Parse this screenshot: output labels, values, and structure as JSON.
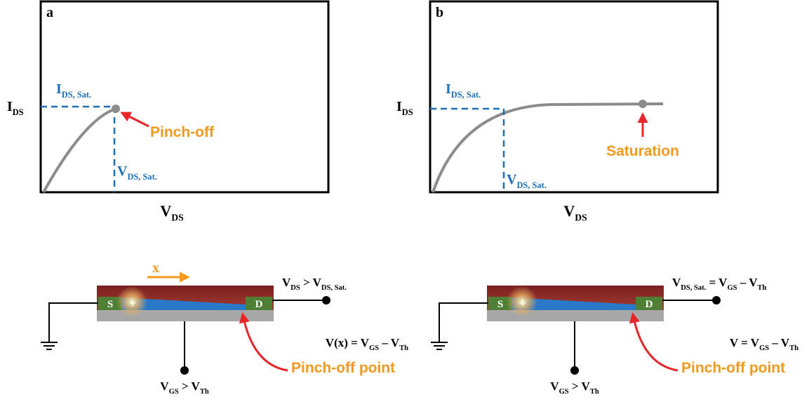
{
  "panel_a": {
    "label": "a",
    "y_axis": [
      {
        "text": "I",
        "sub": "DS"
      }
    ],
    "x_axis": [
      {
        "text": "V",
        "sub": "DS"
      }
    ],
    "sat_current": [
      {
        "text": "I",
        "sub": "DS, Sat."
      }
    ],
    "sat_voltage": [
      {
        "text": "V",
        "sub": "DS, Sat."
      }
    ],
    "annotation": "Pinch-off"
  },
  "panel_b": {
    "label": "b",
    "y_axis": [
      {
        "text": "I",
        "sub": "DS"
      }
    ],
    "x_axis": [
      {
        "text": "V",
        "sub": "DS"
      }
    ],
    "sat_current": [
      {
        "text": "I",
        "sub": "DS, Sat."
      }
    ],
    "sat_voltage": [
      {
        "text": "V",
        "sub": "DS, Sat."
      }
    ],
    "annotation": "Saturation"
  },
  "device_a": {
    "source": "S",
    "drain": "D",
    "charge": "+",
    "direction": "x",
    "drain_condition": [
      {
        "text": "V",
        "sub": "DS"
      },
      {
        "text": " > V",
        "sub": "DS, Sat."
      }
    ],
    "channel_condition": [
      {
        "text": "V(x) = V",
        "sub": "GS"
      },
      {
        "text": " – V",
        "sub": "Th"
      }
    ],
    "gate_condition": [
      {
        "text": "V",
        "sub": "GS"
      },
      {
        "text": " > V",
        "sub": "Th"
      }
    ],
    "annotation": "Pinch-off point"
  },
  "device_b": {
    "source": "S",
    "drain": "D",
    "charge": "+",
    "drain_condition": [
      {
        "text": "V",
        "sub": "DS, Sat."
      },
      {
        "text": " = V",
        "sub": "GS"
      },
      {
        "text": " – V",
        "sub": "Th"
      }
    ],
    "channel_condition": [
      {
        "text": "V = V",
        "sub": "GS"
      },
      {
        "text": " – V",
        "sub": "Th"
      }
    ],
    "gate_condition": [
      {
        "text": "V",
        "sub": "GS"
      },
      {
        "text": " > V",
        "sub": "Th"
      }
    ],
    "annotation": "Pinch-off point"
  }
}
